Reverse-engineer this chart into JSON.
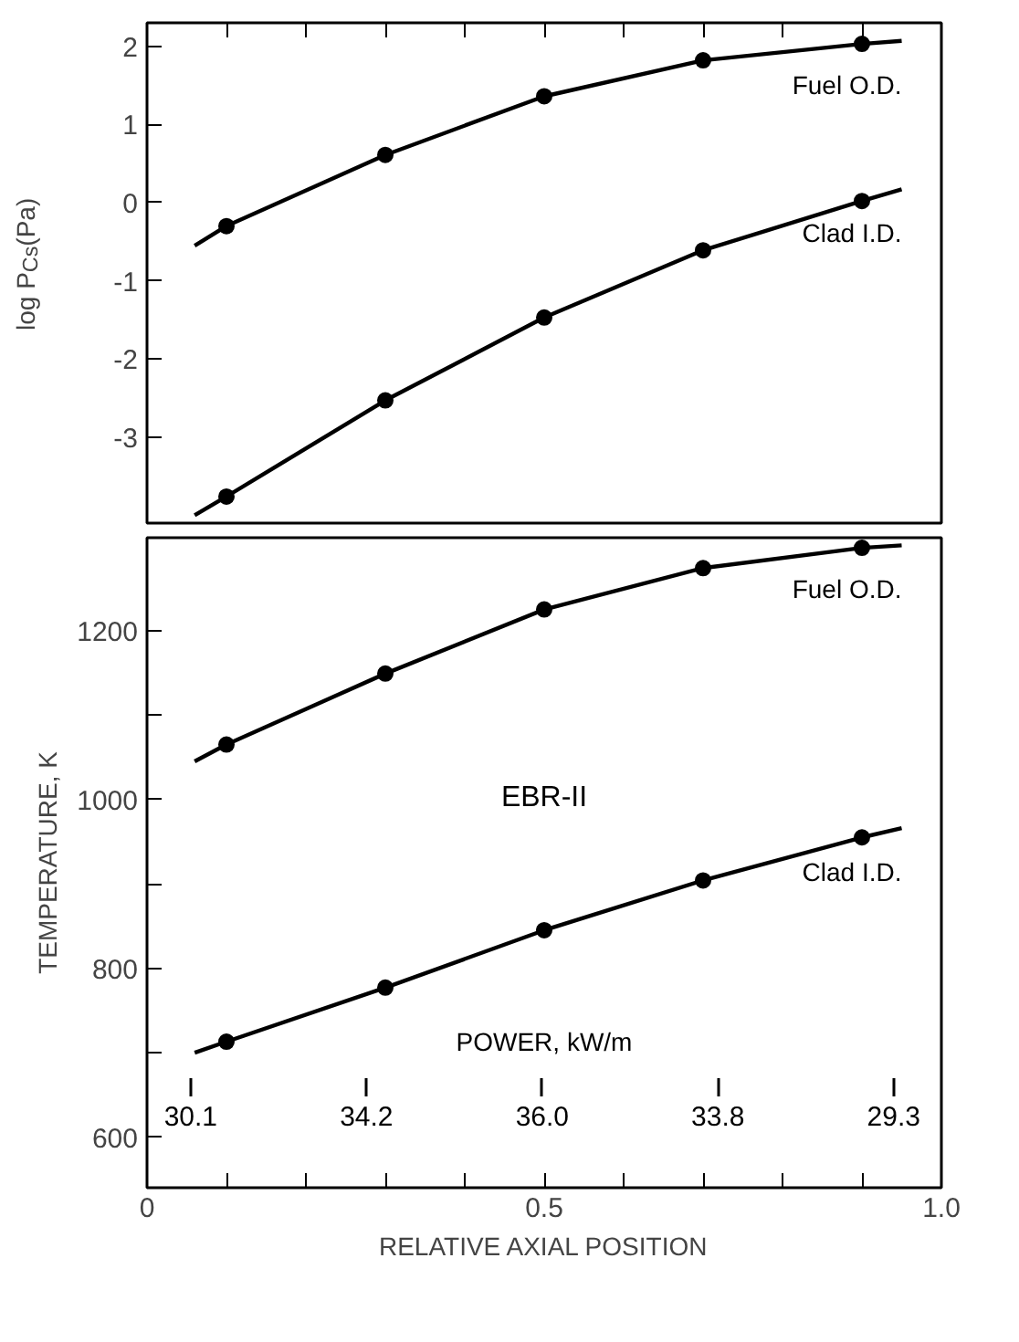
{
  "chart_data": [
    {
      "type": "line",
      "ylabel": "log P$_{Cs}$(Pa)",
      "xlim": [
        0,
        1.0
      ],
      "ylim": [
        -4.1,
        2.3
      ],
      "yticks": [
        -3,
        -2,
        -1,
        0,
        1,
        2
      ],
      "xticks": [
        {
          "value": 0,
          "label": null
        },
        {
          "value": 0.1,
          "label": null
        },
        {
          "value": 0.2,
          "label": null
        },
        {
          "value": 0.3,
          "label": null
        },
        {
          "value": 0.4,
          "label": null
        },
        {
          "value": 0.5,
          "label": null
        },
        {
          "value": 0.6,
          "label": null
        },
        {
          "value": 0.7,
          "label": null
        },
        {
          "value": 0.8,
          "label": null
        },
        {
          "value": 0.9,
          "label": null
        },
        {
          "value": 1.0,
          "label": null
        }
      ],
      "tick_labels": "y",
      "grid": false,
      "series": [
        {
          "name": "Fuel O.D.",
          "marker": "none",
          "color": "#000000",
          "x": [
            0.06,
            0.1,
            0.3,
            0.5,
            0.7,
            0.9,
            0.95
          ],
          "values": [
            -0.55,
            -0.3,
            0.61,
            1.36,
            1.82,
            2.03,
            2.07
          ]
        },
        {
          "type": "scatter",
          "marker": "circle",
          "color": "#000000",
          "x": [
            0.1,
            0.3,
            0.5,
            0.7,
            0.9
          ],
          "values": [
            -0.3,
            0.61,
            1.36,
            1.82,
            2.03
          ]
        },
        {
          "name": "Clad I.D.",
          "marker": "none",
          "color": "#000000",
          "x": [
            0.06,
            0.1,
            0.3,
            0.5,
            0.7,
            0.9,
            0.95
          ],
          "values": [
            -4.0,
            -3.76,
            -2.53,
            -1.47,
            -0.61,
            0.02,
            0.17
          ]
        },
        {
          "type": "scatter",
          "marker": "circle",
          "color": "#000000",
          "x": [
            0.1,
            0.3,
            0.5,
            0.7,
            0.9
          ],
          "values": [
            -3.76,
            -2.53,
            -1.47,
            -0.61,
            0.02
          ]
        }
      ]
    },
    {
      "type": "line",
      "ylabel": "TEMPERATURE, K",
      "xlabel": "RELATIVE AXIAL POSITION",
      "xlim": [
        0,
        1.0
      ],
      "ylim": [
        540,
        1310
      ],
      "yticks": [
        600,
        {
          "value": 700,
          "label": null
        },
        800,
        {
          "value": 900,
          "label": null
        },
        1000,
        {
          "value": 1100,
          "label": null
        },
        1200
      ],
      "xticks": [
        0,
        {
          "value": 0.1,
          "label": null
        },
        {
          "value": 0.2,
          "label": null
        },
        {
          "value": 0.3,
          "label": null
        },
        {
          "value": 0.4,
          "label": null
        },
        0.5,
        {
          "value": 0.6,
          "label": null
        },
        {
          "value": 0.7,
          "label": null
        },
        {
          "value": 0.8,
          "label": null
        },
        {
          "value": 0.9,
          "label": null
        },
        {
          "value": 1.0,
          "label": "1.0"
        }
      ],
      "annotations": [
        "EBR-II",
        "POWER, kW/m",
        "30.1",
        "34.2",
        "36.0",
        "33.8",
        "29.3"
      ],
      "grid": false,
      "series": [
        {
          "name": "Fuel O.D.",
          "marker": "none",
          "color": "#000000",
          "x": [
            0.06,
            0.1,
            0.3,
            0.5,
            0.7,
            0.9,
            0.95
          ],
          "values": [
            1045,
            1065,
            1149,
            1225,
            1274,
            1298,
            1301
          ]
        },
        {
          "type": "scatter",
          "marker": "circle",
          "color": "#000000",
          "x": [
            0.1,
            0.3,
            0.5,
            0.7,
            0.9
          ],
          "values": [
            1065,
            1149,
            1225,
            1274,
            1298
          ]
        },
        {
          "name": "Clad I.D.",
          "marker": "none",
          "color": "#000000",
          "x": [
            0.06,
            0.1,
            0.3,
            0.5,
            0.7,
            0.9,
            0.95
          ],
          "values": [
            700,
            713,
            777,
            845,
            904,
            955,
            966
          ]
        },
        {
          "type": "scatter",
          "marker": "circle",
          "color": "#000000",
          "x": [
            0.1,
            0.3,
            0.5,
            0.7,
            0.9
          ],
          "values": [
            713,
            777,
            845,
            904,
            955
          ]
        }
      ]
    }
  ]
}
